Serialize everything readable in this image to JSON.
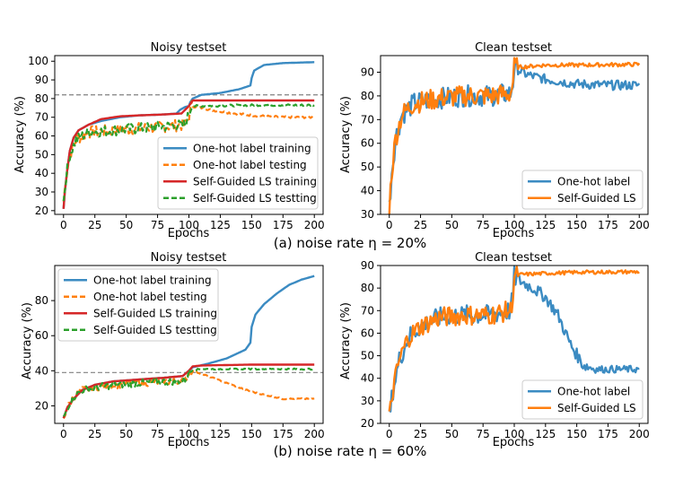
{
  "colors": {
    "onehot": "#3b8bc2",
    "onehot_test": "#ff7f0e",
    "selfls": "#d62728",
    "selfls_test": "#2ca02c",
    "hline": "#808080"
  },
  "captions": {
    "a": "(a) noise rate η = 20%",
    "b": "(b) noise rate η = 60%"
  },
  "chart_data": [
    {
      "id": "a_noisy",
      "type": "line",
      "title": "Noisy testset",
      "xlabel": "Epochs",
      "ylabel": "Accuracy (%)",
      "xlim": [
        -7,
        207
      ],
      "ylim": [
        18,
        103
      ],
      "xticks": [
        0,
        25,
        50,
        75,
        100,
        125,
        150,
        175,
        200
      ],
      "yticks": [
        20,
        30,
        40,
        50,
        60,
        70,
        80,
        90,
        100
      ],
      "hline": 82,
      "legend_position": "lower-right",
      "series": [
        {
          "name": "One-hot label training",
          "color": "#3b8bc2",
          "dash": false,
          "kind": "smooth",
          "pts": [
            [
              0,
              21
            ],
            [
              1,
              30
            ],
            [
              3,
              42
            ],
            [
              5,
              52
            ],
            [
              8,
              59
            ],
            [
              12,
              63
            ],
            [
              20,
              66
            ],
            [
              30,
              68
            ],
            [
              45,
              70
            ],
            [
              60,
              71
            ],
            [
              80,
              71.5
            ],
            [
              90,
              72
            ],
            [
              93,
              74
            ],
            [
              97,
              75.5
            ],
            [
              100,
              76
            ],
            [
              101,
              78
            ],
            [
              103,
              80
            ],
            [
              110,
              82
            ],
            [
              125,
              83
            ],
            [
              140,
              85
            ],
            [
              149,
              87
            ],
            [
              150,
              91
            ],
            [
              152,
              95
            ],
            [
              160,
              98
            ],
            [
              175,
              99
            ],
            [
              200,
              99.5
            ]
          ]
        },
        {
          "name": "One-hot label testing",
          "color": "#ff7f0e",
          "dash": true,
          "kind": "noisy",
          "amp": 3.2,
          "pts": [
            [
              0,
              25
            ],
            [
              2,
              38
            ],
            [
              5,
              50
            ],
            [
              10,
              58
            ],
            [
              20,
              62
            ],
            [
              40,
              63
            ],
            [
              60,
              64
            ],
            [
              80,
              65
            ],
            [
              97,
              66
            ],
            [
              100,
              70
            ],
            [
              102,
              76
            ],
            [
              110,
              75
            ],
            [
              125,
              73
            ],
            [
              150,
              71
            ],
            [
              175,
              70
            ],
            [
              200,
              70
            ]
          ]
        },
        {
          "name": "Self-Guided LS training",
          "color": "#d62728",
          "dash": false,
          "kind": "smooth",
          "pts": [
            [
              0,
              21
            ],
            [
              1,
              30
            ],
            [
              3,
              42
            ],
            [
              5,
              52
            ],
            [
              8,
              59
            ],
            [
              12,
              63
            ],
            [
              20,
              66
            ],
            [
              30,
              69
            ],
            [
              45,
              70.5
            ],
            [
              60,
              71
            ],
            [
              80,
              71.5
            ],
            [
              94,
              72
            ],
            [
              97,
              74
            ],
            [
              100,
              76
            ],
            [
              103,
              79
            ],
            [
              110,
              79
            ],
            [
              150,
              79
            ],
            [
              200,
              79
            ]
          ]
        },
        {
          "name": "Self-Guided LS testting",
          "color": "#2ca02c",
          "dash": true,
          "kind": "noisy",
          "amp": 3.0,
          "pts": [
            [
              0,
              25
            ],
            [
              2,
              38
            ],
            [
              5,
              50
            ],
            [
              10,
              58
            ],
            [
              20,
              62
            ],
            [
              40,
              63
            ],
            [
              60,
              64
            ],
            [
              80,
              65
            ],
            [
              97,
              66
            ],
            [
              100,
              72
            ],
            [
              102,
              76
            ],
            [
              110,
              76
            ],
            [
              150,
              76.5
            ],
            [
              200,
              76.5
            ]
          ]
        }
      ]
    },
    {
      "id": "a_clean",
      "type": "line",
      "title": "Clean testset",
      "xlabel": "Epochs",
      "ylabel": "Accuracy (%)",
      "xlim": [
        -7,
        207
      ],
      "ylim": [
        30,
        97
      ],
      "xticks": [
        0,
        25,
        50,
        75,
        100,
        125,
        150,
        175,
        200
      ],
      "yticks": [
        30,
        40,
        50,
        60,
        70,
        80,
        90
      ],
      "legend_position": "lower-right",
      "series": [
        {
          "name": "One-hot label",
          "color": "#3b8bc2",
          "dash": false,
          "kind": "noisy",
          "amp": 4.5,
          "pts": [
            [
              0,
              33
            ],
            [
              2,
              48
            ],
            [
              5,
              62
            ],
            [
              10,
              72
            ],
            [
              20,
              77
            ],
            [
              40,
              79
            ],
            [
              60,
              80
            ],
            [
              80,
              80
            ],
            [
              97,
              81
            ],
            [
              99,
              86
            ],
            [
              100,
              92
            ],
            [
              110,
              89
            ],
            [
              125,
              87
            ],
            [
              150,
              85
            ],
            [
              175,
              84.5
            ],
            [
              200,
              84.5
            ]
          ]
        },
        {
          "name": "Self-Guided LS",
          "color": "#ff7f0e",
          "dash": false,
          "kind": "noisy",
          "amp": 4.5,
          "pts": [
            [
              0,
              33
            ],
            [
              2,
              48
            ],
            [
              5,
              62
            ],
            [
              10,
              72
            ],
            [
              20,
              77
            ],
            [
              40,
              79
            ],
            [
              60,
              80
            ],
            [
              80,
              80
            ],
            [
              97,
              81
            ],
            [
              99,
              86
            ],
            [
              100,
              92
            ],
            [
              101,
              92
            ],
            [
              125,
              93
            ],
            [
              150,
              93
            ],
            [
              200,
              93.3
            ]
          ]
        }
      ]
    },
    {
      "id": "b_noisy",
      "type": "line",
      "title": "Noisy testset",
      "xlabel": "Epochs",
      "ylabel": "Accuracy (%)",
      "xlim": [
        -7,
        207
      ],
      "ylim": [
        10,
        100
      ],
      "xticks": [
        0,
        25,
        50,
        75,
        100,
        125,
        150,
        175,
        200
      ],
      "yticks": [
        20,
        40,
        60,
        80
      ],
      "hline": 39,
      "legend_position": "upper-left",
      "series": [
        {
          "name": "One-hot label training",
          "color": "#3b8bc2",
          "dash": false,
          "kind": "smooth",
          "pts": [
            [
              0,
              13
            ],
            [
              3,
              19
            ],
            [
              8,
              24
            ],
            [
              15,
              29
            ],
            [
              25,
              32
            ],
            [
              40,
              34
            ],
            [
              60,
              35
            ],
            [
              80,
              36
            ],
            [
              95,
              37
            ],
            [
              100,
              40
            ],
            [
              103,
              42
            ],
            [
              115,
              44
            ],
            [
              130,
              47
            ],
            [
              145,
              52
            ],
            [
              149,
              56
            ],
            [
              150,
              65
            ],
            [
              153,
              72
            ],
            [
              160,
              78
            ],
            [
              170,
              84
            ],
            [
              180,
              89
            ],
            [
              190,
              92
            ],
            [
              200,
              94
            ]
          ]
        },
        {
          "name": "One-hot label testing",
          "color": "#ff7f0e",
          "dash": true,
          "kind": "noisy",
          "amp": 2.0,
          "pts": [
            [
              0,
              13
            ],
            [
              3,
              19
            ],
            [
              8,
              25
            ],
            [
              15,
              29
            ],
            [
              30,
              31
            ],
            [
              60,
              33
            ],
            [
              90,
              34
            ],
            [
              97,
              35
            ],
            [
              100,
              39
            ],
            [
              103,
              40
            ],
            [
              115,
              37
            ],
            [
              130,
              33
            ],
            [
              150,
              28
            ],
            [
              175,
              24
            ],
            [
              200,
              24
            ]
          ]
        },
        {
          "name": "Self-Guided LS training",
          "color": "#d62728",
          "dash": false,
          "kind": "smooth",
          "pts": [
            [
              0,
              13
            ],
            [
              3,
              19
            ],
            [
              8,
              24
            ],
            [
              15,
              29
            ],
            [
              25,
              32
            ],
            [
              40,
              34
            ],
            [
              60,
              35
            ],
            [
              80,
              36
            ],
            [
              95,
              37
            ],
            [
              100,
              40
            ],
            [
              103,
              42.5
            ],
            [
              110,
              43
            ],
            [
              150,
              43.5
            ],
            [
              200,
              43.5
            ]
          ]
        },
        {
          "name": "Self-Guided LS testting",
          "color": "#2ca02c",
          "dash": true,
          "kind": "noisy",
          "amp": 2.0,
          "pts": [
            [
              0,
              13
            ],
            [
              3,
              19
            ],
            [
              8,
              25
            ],
            [
              15,
              29
            ],
            [
              30,
              31
            ],
            [
              60,
              33
            ],
            [
              90,
              34
            ],
            [
              97,
              35
            ],
            [
              100,
              39
            ],
            [
              103,
              40.5
            ],
            [
              110,
              41
            ],
            [
              150,
              41
            ],
            [
              200,
              41
            ]
          ]
        }
      ]
    },
    {
      "id": "b_clean",
      "type": "line",
      "title": "Clean testset",
      "xlabel": "Epochs",
      "ylabel": "Accuracy (%)",
      "xlim": [
        -7,
        207
      ],
      "ylim": [
        20,
        90
      ],
      "xticks": [
        0,
        25,
        50,
        75,
        100,
        125,
        150,
        175,
        200
      ],
      "yticks": [
        20,
        30,
        40,
        50,
        60,
        70,
        80,
        90
      ],
      "legend_position": "lower-right",
      "series": [
        {
          "name": "One-hot label",
          "color": "#3b8bc2",
          "dash": false,
          "kind": "noisy",
          "amp": 4.5,
          "pts": [
            [
              0,
              22
            ],
            [
              3,
              35
            ],
            [
              8,
              48
            ],
            [
              15,
              58
            ],
            [
              25,
              63
            ],
            [
              40,
              67
            ],
            [
              60,
              68
            ],
            [
              80,
              68
            ],
            [
              97,
              70
            ],
            [
              99,
              77
            ],
            [
              100,
              85
            ],
            [
              105,
              83
            ],
            [
              115,
              80
            ],
            [
              125,
              76
            ],
            [
              135,
              68
            ],
            [
              145,
              55
            ],
            [
              155,
              46
            ],
            [
              165,
              44
            ],
            [
              200,
              44
            ]
          ]
        },
        {
          "name": "Self-Guided LS",
          "color": "#ff7f0e",
          "dash": false,
          "kind": "noisy",
          "amp": 4.5,
          "pts": [
            [
              0,
              22
            ],
            [
              3,
              35
            ],
            [
              8,
              48
            ],
            [
              15,
              58
            ],
            [
              25,
              63
            ],
            [
              40,
              67
            ],
            [
              60,
              68
            ],
            [
              80,
              68
            ],
            [
              97,
              70
            ],
            [
              99,
              77
            ],
            [
              100,
              85
            ],
            [
              105,
              86
            ],
            [
              125,
              86.5
            ],
            [
              150,
              87
            ],
            [
              200,
              87.2
            ]
          ]
        }
      ]
    }
  ]
}
